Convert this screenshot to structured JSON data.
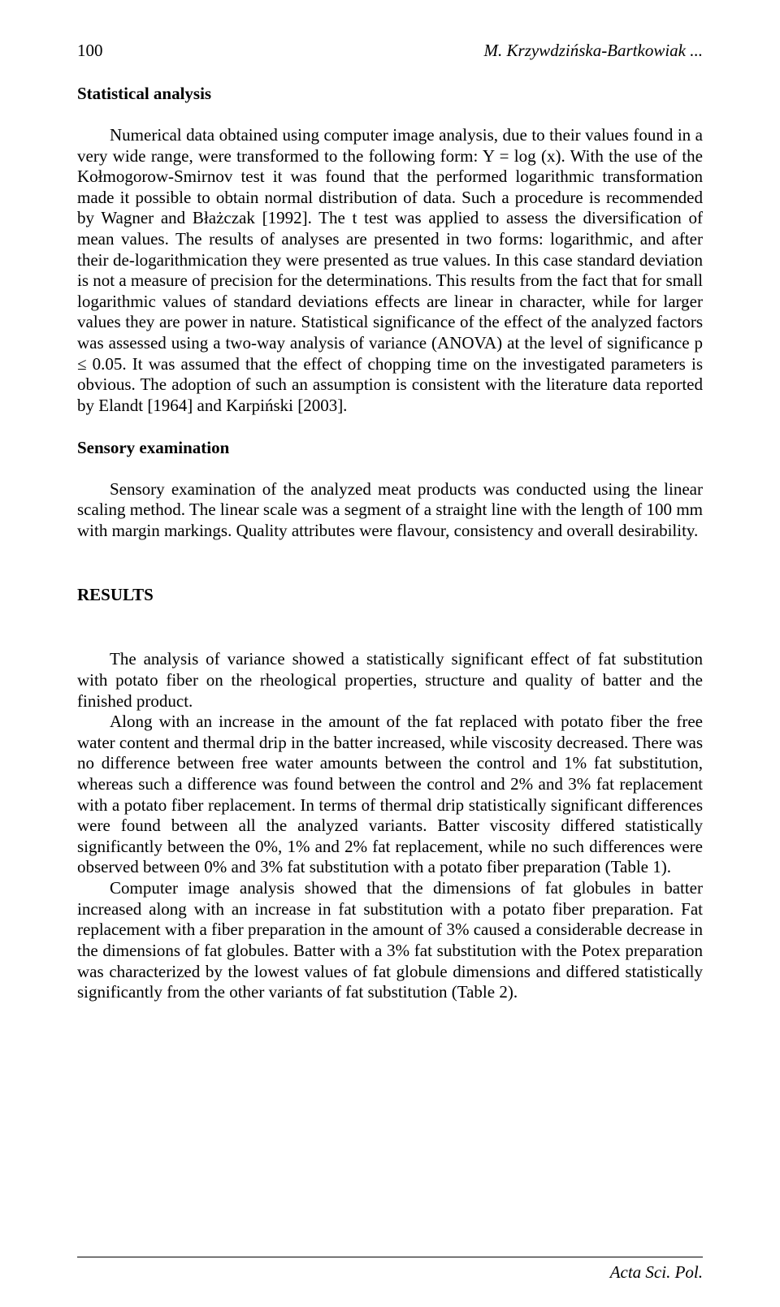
{
  "header": {
    "page_number": "100",
    "running_title": "M. Krzywdzińska-Bartkowiak ..."
  },
  "sections": {
    "statistical": {
      "heading": "Statistical analysis",
      "para1": "Numerical data obtained using computer image analysis, due to their values found in a very wide range, were transformed to the following form: Y = log (x). With the use of the Kołmogorow-Smirnov test it was found that the performed logarithmic transformation made it possible to obtain normal distribution of data. Such a procedure is recommended by Wagner and Błażczak [1992]. The t test was applied to assess the diversification of mean values. The results of analyses are presented in two forms: logarithmic, and after their de-logarithmication they were presented as true values. In this case standard deviation is not a measure of precision for the determinations. This results from the fact that for small logarithmic values of standard deviations effects are linear in character, while for larger values they are power in nature. Statistical significance of the effect of the analyzed factors was assessed using a two-way analysis of variance (ANOVA) at the level of significance p ≤ 0.05. It was assumed that the effect of chopping time on the investigated parameters is obvious. The adoption of such an assumption is consistent with the literature data reported by Elandt [1964] and Karpiński [2003]."
    },
    "sensory": {
      "heading": "Sensory examination",
      "para1": "Sensory examination of the analyzed meat products was conducted using the linear scaling method. The linear scale was a segment of a straight line with the length of 100 mm with margin markings. Quality attributes were flavour, consistency and overall desirability."
    },
    "results": {
      "heading": "RESULTS",
      "para1": "The analysis of variance showed a statistically significant effect of fat substitution with potato fiber on the rheological properties, structure and quality of batter and the finished product.",
      "para2": "Along with an increase in the amount of the fat replaced with potato fiber the free water content and thermal drip in the batter increased, while viscosity decreased. There was no difference between free water amounts between the control and 1% fat substitution, whereas such a difference was found between the control and 2% and 3% fat replacement with a potato fiber replacement. In terms of thermal drip statistically significant differences were found between all the analyzed variants. Batter viscosity differed statistically significantly between the 0%, 1% and 2% fat replacement, while no such differences were observed between 0% and 3% fat substitution with a potato fiber preparation (Table 1).",
      "para3": "Computer image analysis showed that the dimensions of fat globules in batter increased along with an increase in fat substitution with a potato fiber preparation. Fat replacement with a fiber preparation in the amount of 3% caused a considerable decrease in the dimensions of fat globules. Batter with a 3% fat substitution with the Potex preparation was characterized by the lowest values of fat globule dimensions and differed statistically significantly from the other variants of fat substitution (Table 2)."
    }
  },
  "footer": {
    "journal": "Acta Sci. Pol."
  }
}
